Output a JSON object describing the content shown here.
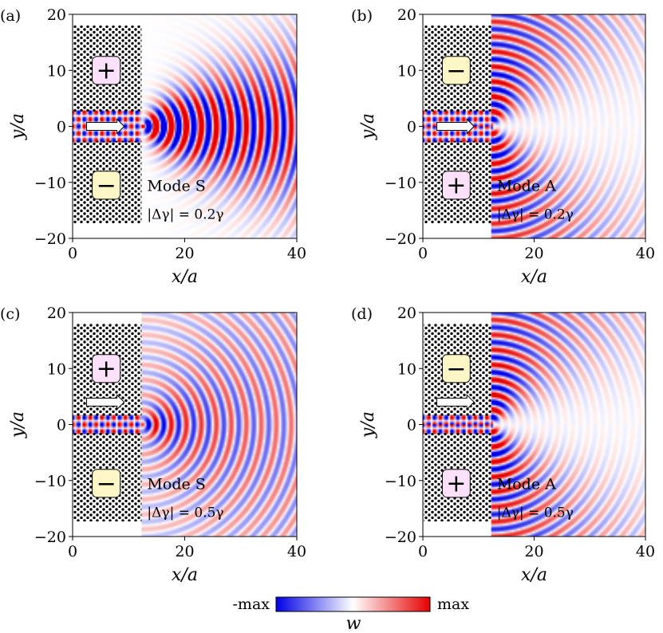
{
  "colors": {
    "neg": "#0000e6",
    "mid": "#ffffff",
    "pos": "#e60000",
    "plus_box": "#fde0fa",
    "minus_box": "#fdf6c6"
  },
  "chart_data": {
    "type": "heatmap",
    "xlabel": "x/a",
    "ylabel": "y/a",
    "xlim": [
      0,
      40
    ],
    "ylim": [
      -20,
      20
    ],
    "xticks": [
      "0",
      "20",
      "40"
    ],
    "yticks": [
      "20",
      "10",
      "0",
      "−10",
      "−20"
    ],
    "colorbar": {
      "min_label": "-max",
      "max_label": "max",
      "label": "w"
    },
    "panels": [
      {
        "tag": "(a)",
        "mode": "Mode S",
        "delta": "|Δγ| = 0.2γ",
        "top_sign": "+",
        "bottom_sign": "−",
        "symmetry": "S",
        "gamma": 0.2
      },
      {
        "tag": "(b)",
        "mode": "Mode A",
        "delta": "|Δγ| = 0.2γ",
        "top_sign": "−",
        "bottom_sign": "+",
        "symmetry": "A",
        "gamma": 0.2
      },
      {
        "tag": "(c)",
        "mode": "Mode S",
        "delta": "|Δγ| = 0.5γ",
        "top_sign": "+",
        "bottom_sign": "−",
        "symmetry": "S",
        "gamma": 0.5
      },
      {
        "tag": "(d)",
        "mode": "Mode A",
        "delta": "|Δγ| = 0.5γ",
        "top_sign": "−",
        "bottom_sign": "+",
        "symmetry": "A",
        "gamma": 0.5
      }
    ]
  }
}
